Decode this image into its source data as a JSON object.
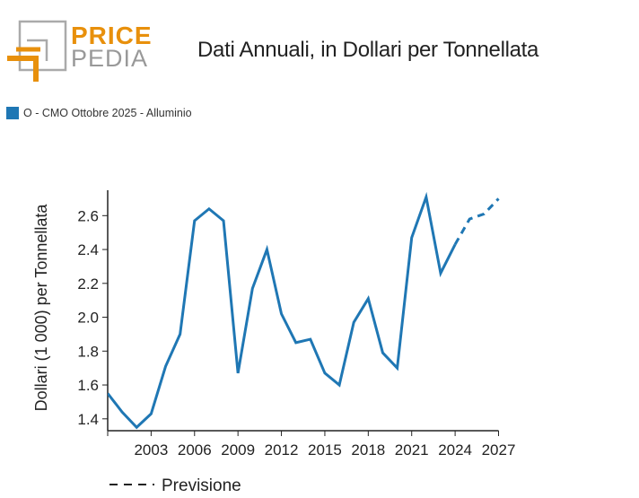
{
  "logo": {
    "line1": "PRICE",
    "line2": "PEDIA"
  },
  "title": "Dati Annuali, in Dollari per Tonnellata",
  "legend": {
    "label": "O - CMO Ottobre 2025 - Alluminio",
    "color": "#1f77b4"
  },
  "forecast_legend": "Previsione",
  "chart_data": {
    "type": "line",
    "title": "Dati Annuali, in Dollari per Tonnellata",
    "xlabel": "",
    "ylabel": "Dollari (1 000) per Tonnellata",
    "xlim": [
      2000,
      2027
    ],
    "ylim": [
      1.33,
      2.75
    ],
    "xticks": [
      2003,
      2006,
      2009,
      2012,
      2015,
      2018,
      2021,
      2024,
      2027
    ],
    "yticks": [
      1.4,
      1.6,
      1.8,
      2.0,
      2.2,
      2.4,
      2.6
    ],
    "ytick_labels": [
      "1.4",
      "1.6",
      "1.8",
      "2.0",
      "2.2",
      "2.4",
      "2.6"
    ],
    "series": [
      {
        "name": "O - CMO Ottobre 2025 - Alluminio",
        "style": "solid",
        "x": [
          2000,
          2001,
          2002,
          2003,
          2004,
          2005,
          2006,
          2007,
          2008,
          2009,
          2010,
          2011,
          2012,
          2013,
          2014,
          2015,
          2016,
          2017,
          2018,
          2019,
          2020,
          2021,
          2022,
          2023,
          2024
        ],
        "values": [
          1.55,
          1.44,
          1.35,
          1.43,
          1.71,
          1.9,
          2.57,
          2.64,
          2.57,
          1.67,
          2.17,
          2.4,
          2.02,
          1.85,
          1.87,
          1.67,
          1.6,
          1.97,
          2.11,
          1.79,
          1.7,
          2.47,
          2.71,
          2.26,
          2.43
        ]
      },
      {
        "name": "Previsione",
        "style": "dashed",
        "x": [
          2024,
          2025,
          2026,
          2027
        ],
        "values": [
          2.43,
          2.58,
          2.61,
          2.7
        ]
      }
    ]
  }
}
